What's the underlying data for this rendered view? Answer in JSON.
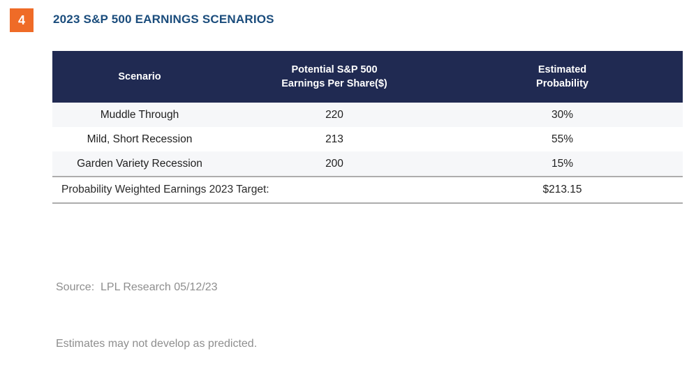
{
  "figure": {
    "number": "4"
  },
  "title": "2023 S&P 500 EARNINGS SCENARIOS",
  "colors": {
    "accent_orange": "#EF6B27",
    "header_navy": "#202A52",
    "title_blue": "#1A4C7C",
    "row_alt_gray": "#F6F7F9",
    "rule_gray": "#ADADAD",
    "source_gray": "#8E8E8E"
  },
  "table": {
    "headers": [
      "Scenario",
      "Potential S&P 500\nEarnings Per Share($)",
      "Estimated\nProbability"
    ],
    "rows": [
      {
        "scenario": "Muddle Through",
        "eps": "220",
        "probability": "30%"
      },
      {
        "scenario": "Mild, Short Recession",
        "eps": "213",
        "probability": "55%"
      },
      {
        "scenario": "Garden Variety Recession",
        "eps": "200",
        "probability": "15%"
      }
    ],
    "footer": {
      "label": "Probability Weighted Earnings 2023 Target:",
      "value": "$213.15"
    }
  },
  "source": {
    "line1": "Source:  LPL Research 05/12/23",
    "line2": "Estimates may not develop as predicted."
  },
  "chart_data": {
    "type": "table",
    "title": "2023 S&P 500 EARNINGS SCENARIOS",
    "columns": [
      "Scenario",
      "Potential S&P 500 Earnings Per Share($)",
      "Estimated Probability"
    ],
    "rows": [
      [
        "Muddle Through",
        220,
        "30%"
      ],
      [
        "Mild, Short Recession",
        213,
        "55%"
      ],
      [
        "Garden Variety Recession",
        200,
        "15%"
      ]
    ],
    "footer_row": [
      "Probability Weighted Earnings 2023 Target:",
      "$213.15"
    ],
    "source": "Source: LPL Research 05/12/23",
    "note": "Estimates may not develop as predicted."
  }
}
